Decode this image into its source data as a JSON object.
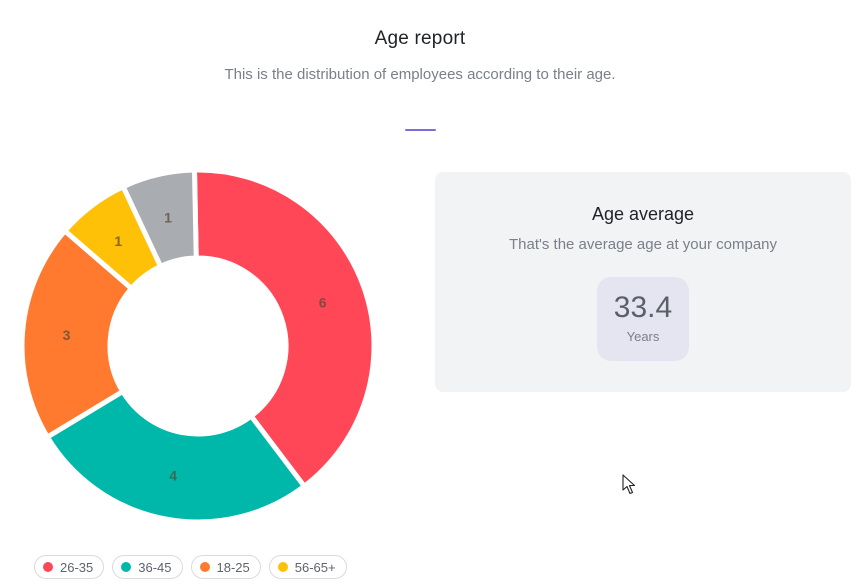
{
  "header": {
    "title": "Age report",
    "subtitle": "This is the distribution of employees according to their age."
  },
  "chart_data": {
    "type": "pie",
    "variant": "donut",
    "categories": [
      "26-35",
      "36-45",
      "18-25",
      "56-65+",
      ""
    ],
    "values": [
      6,
      4,
      3,
      1,
      1
    ],
    "colors": [
      "#ff4757",
      "#00b8a9",
      "#ff7a2f",
      "#ffc107",
      "#a9adb1"
    ],
    "legend": [
      "26-35",
      "36-45",
      "18-25",
      "56-65+"
    ],
    "legend_position": "bottom-left"
  },
  "card": {
    "title": "Age average",
    "subtitle": "That's the average age at your company",
    "value": "33.4",
    "unit": "Years"
  },
  "icons": {
    "cursor": "mouse-pointer-icon"
  }
}
